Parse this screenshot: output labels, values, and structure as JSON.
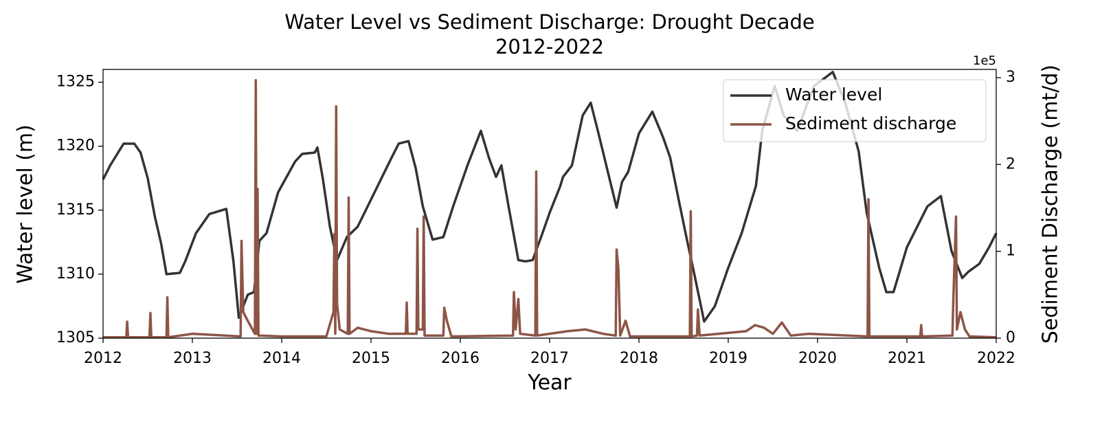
{
  "chart_data": {
    "type": "line",
    "title": "Water Level vs Sediment Discharge: Drought Decade\n2012-2022",
    "xlabel": "Year",
    "ylabel": "Water level (m)",
    "y2label": "Sediment Discharge (mt/d)",
    "y2_offset_label": "1e5",
    "xlim": [
      2012,
      2022
    ],
    "xticks": [
      2012,
      2013,
      2014,
      2015,
      2016,
      2017,
      2018,
      2019,
      2020,
      2021,
      2022
    ],
    "ylim": [
      1305,
      1326
    ],
    "yticks": [
      1305,
      1310,
      1315,
      1320,
      1325
    ],
    "y2lim": [
      0,
      309500
    ],
    "y2ticks": [
      0,
      {
        "value": 100000,
        "label": "1"
      },
      {
        "value": 200000,
        "label": "2"
      },
      {
        "value": 300000,
        "label": "3"
      }
    ],
    "grid": false,
    "legend": "upper right",
    "series": [
      {
        "name": "Water level",
        "color": "#333333",
        "axis": "y",
        "x": [
          2012.0,
          2012.08,
          2012.23,
          2012.35,
          2012.42,
          2012.5,
          2012.58,
          2012.65,
          2012.71,
          2012.86,
          2012.92,
          2013.04,
          2013.19,
          2013.38,
          2013.46,
          2013.52,
          2013.62,
          2013.69,
          2013.75,
          2013.83,
          2013.96,
          2014.15,
          2014.23,
          2014.37,
          2014.4,
          2014.46,
          2014.54,
          2014.62,
          2014.73,
          2014.85,
          2015.04,
          2015.23,
          2015.31,
          2015.42,
          2015.5,
          2015.58,
          2015.69,
          2015.81,
          2015.92,
          2016.08,
          2016.23,
          2016.32,
          2016.4,
          2016.46,
          2016.54,
          2016.65,
          2016.73,
          2016.81,
          2016.92,
          2017.0,
          2017.12,
          2017.15,
          2017.25,
          2017.37,
          2017.46,
          2017.54,
          2017.69,
          2017.75,
          2017.81,
          2017.88,
          2018.0,
          2018.15,
          2018.27,
          2018.35,
          2018.46,
          2018.54,
          2018.62,
          2018.73,
          2018.85,
          2019.0,
          2019.15,
          2019.31,
          2019.38,
          2019.52,
          2019.62,
          2019.77,
          2019.96,
          2020.17,
          2020.31,
          2020.46,
          2020.55,
          2020.69,
          2020.77,
          2020.85,
          2021.0,
          2021.23,
          2021.38,
          2021.5,
          2021.62,
          2021.69,
          2021.81,
          2021.92,
          2022.0
        ],
        "values": [
          1317.4,
          1318.5,
          1320.2,
          1320.2,
          1319.5,
          1317.5,
          1314.5,
          1312.4,
          1310.0,
          1310.1,
          1311.0,
          1313.2,
          1314.7,
          1315.1,
          1311.0,
          1306.6,
          1308.4,
          1308.6,
          1312.6,
          1313.2,
          1316.4,
          1318.8,
          1319.4,
          1319.5,
          1319.9,
          1317.5,
          1313.7,
          1311.1,
          1312.9,
          1313.7,
          1316.4,
          1319.1,
          1320.2,
          1320.4,
          1318.3,
          1315.3,
          1312.7,
          1312.9,
          1315.3,
          1318.5,
          1321.2,
          1319.1,
          1317.6,
          1318.5,
          1315.3,
          1311.1,
          1311.0,
          1311.1,
          1313.2,
          1314.8,
          1316.9,
          1317.6,
          1318.5,
          1322.4,
          1323.4,
          1321.2,
          1316.9,
          1315.2,
          1317.2,
          1318.0,
          1321.0,
          1322.7,
          1320.7,
          1319.1,
          1315.3,
          1312.6,
          1310.0,
          1306.3,
          1307.5,
          1310.5,
          1313.2,
          1316.9,
          1321.2,
          1324.7,
          1322.4,
          1321.2,
          1324.7,
          1325.8,
          1323.4,
          1319.6,
          1314.8,
          1310.5,
          1308.6,
          1308.6,
          1312.1,
          1315.3,
          1316.1,
          1311.8,
          1309.7,
          1310.2,
          1310.8,
          1312.1,
          1313.2
        ]
      },
      {
        "name": "Sediment discharge",
        "color": "#8c5546",
        "axis": "y2",
        "x": [
          2012.0,
          2012.26,
          2012.27,
          2012.28,
          2012.52,
          2012.53,
          2012.54,
          2012.71,
          2012.72,
          2012.73,
          2013.0,
          2013.54,
          2013.55,
          2013.57,
          2013.62,
          2013.7,
          2013.71,
          2013.72,
          2013.73,
          2013.74,
          2014.0,
          2014.5,
          2014.58,
          2014.59,
          2014.6,
          2014.61,
          2014.62,
          2014.65,
          2014.74,
          2014.75,
          2014.76,
          2014.85,
          2015.0,
          2015.2,
          2015.39,
          2015.4,
          2015.41,
          2015.51,
          2015.52,
          2015.53,
          2015.58,
          2015.59,
          2015.6,
          2015.81,
          2015.82,
          2015.85,
          2015.9,
          2016.59,
          2016.6,
          2016.62,
          2016.65,
          2016.67,
          2016.84,
          2016.85,
          2016.86,
          2017.2,
          2017.4,
          2017.6,
          2017.74,
          2017.75,
          2017.77,
          2017.79,
          2017.85,
          2017.9,
          2018.57,
          2018.58,
          2018.59,
          2018.65,
          2018.66,
          2018.68,
          2019.2,
          2019.3,
          2019.4,
          2019.5,
          2019.6,
          2019.7,
          2019.9,
          2020.56,
          2020.57,
          2020.58,
          2021.15,
          2021.16,
          2021.17,
          2021.51,
          2021.52,
          2021.55,
          2021.56,
          2021.6,
          2021.65,
          2021.7,
          2022.0
        ],
        "values": [
          1000,
          1000,
          19000,
          1000,
          1000,
          29000,
          1000,
          1000,
          47000,
          1000,
          5000,
          2000,
          112000,
          30000,
          20000,
          5000,
          297000,
          5000,
          172000,
          3000,
          2000,
          2000,
          30000,
          120000,
          5000,
          267000,
          40000,
          10000,
          5000,
          162000,
          5000,
          12000,
          8000,
          5000,
          5000,
          41000,
          5000,
          5000,
          126000,
          10000,
          10000,
          140000,
          3000,
          3000,
          35000,
          20000,
          2000,
          3000,
          53000,
          10000,
          45000,
          5000,
          3000,
          192000,
          3000,
          8000,
          10000,
          5000,
          3000,
          102000,
          80000,
          3000,
          20000,
          2000,
          2000,
          146000,
          2000,
          3000,
          33000,
          3000,
          8000,
          15000,
          12000,
          5000,
          18000,
          3000,
          5000,
          2000,
          160000,
          2000,
          2000,
          15000,
          2000,
          3000,
          45000,
          140000,
          10000,
          30000,
          10000,
          2000,
          1000
        ]
      }
    ]
  }
}
